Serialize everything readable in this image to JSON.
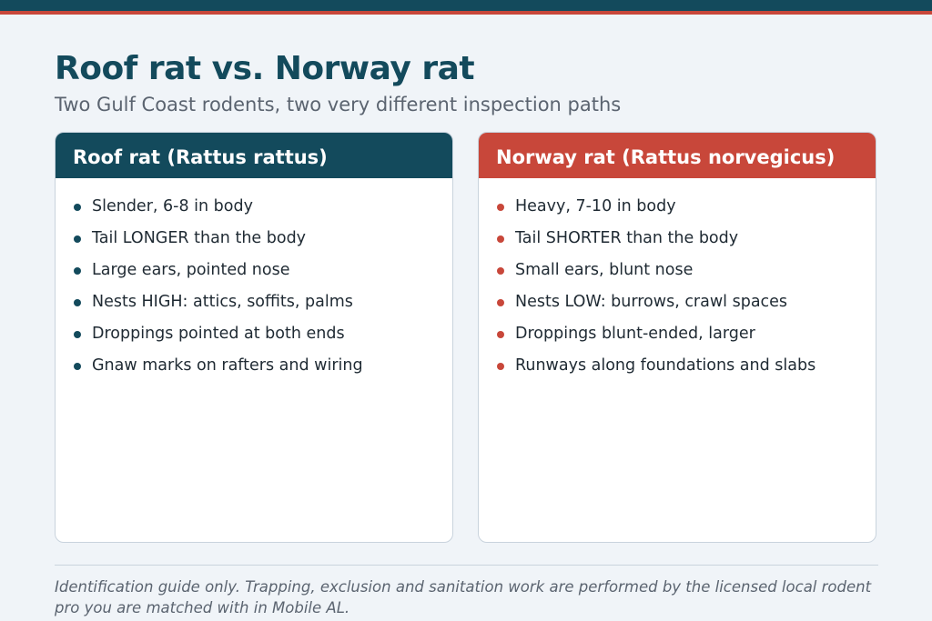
{
  "header": {
    "title": "Roof rat vs. Norway rat",
    "subtitle": "Two Gulf Coast rodents, two very different inspection paths"
  },
  "cards": [
    {
      "title": "Roof rat (Rattus rattus)",
      "items": [
        "Slender, 6-8 in body",
        "Tail LONGER than the body",
        "Large ears, pointed nose",
        "Nests HIGH: attics, soffits, palms",
        "Droppings pointed at both ends",
        "Gnaw marks on rafters and wiring"
      ]
    },
    {
      "title": "Norway rat (Rattus norvegicus)",
      "items": [
        "Heavy, 7-10 in body",
        "Tail SHORTER than the body",
        "Small ears, blunt nose",
        "Nests LOW: burrows, crawl spaces",
        "Droppings blunt-ended, larger",
        "Runways along foundations and slabs"
      ]
    }
  ],
  "footer": "Identification guide only. Trapping, exclusion and sanitation work are performed by the licensed local rodent pro you are matched with in Mobile AL."
}
